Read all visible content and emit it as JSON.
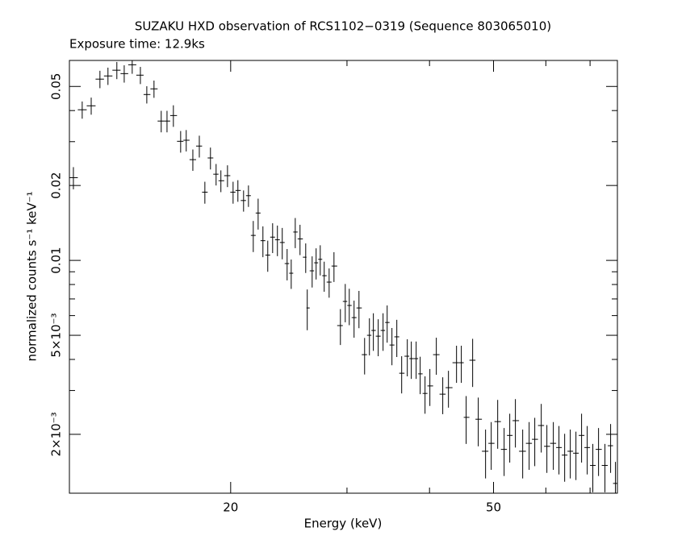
{
  "chart_data": {
    "type": "errorbar",
    "title": "SUZAKU HXD observation of RCS1102−0319 (Sequence 803065010)",
    "subtitle": "Exposure time: 12.9ks",
    "xlabel": "Energy (keV)",
    "ylabel": "normalized counts s⁻¹ keV⁻¹",
    "xscale": "log",
    "yscale": "log",
    "xlim": [
      11.4,
      77
    ],
    "ylim": [
      0.00116,
      0.0636
    ],
    "xticks": [
      20,
      50
    ],
    "xminorticks": [
      30,
      40,
      60,
      70
    ],
    "yticks": [
      {
        "value": 0.002,
        "label": "2×10⁻³"
      },
      {
        "value": 0.005,
        "label": "5×10⁻³"
      },
      0.01,
      0.02,
      0.05
    ],
    "yminorticks": [
      0.003,
      0.004,
      0.006,
      0.007,
      0.008,
      0.009,
      0.03,
      0.04
    ],
    "series": [
      {
        "color": "#000000",
        "x": [
          11.56,
          11.92,
          12.3,
          12.68,
          13.04,
          13.45,
          13.8,
          14.19,
          14.6,
          14.93,
          15.31,
          15.7,
          16.02,
          16.38,
          16.8,
          17.13,
          17.53,
          17.93,
          18.28,
          18.64,
          19.01,
          19.33,
          19.78,
          20.17,
          20.51,
          20.92,
          21.28,
          21.64,
          22.01,
          22.38,
          22.76,
          23.15,
          23.54,
          23.94,
          24.35,
          24.7,
          25.05,
          25.47,
          25.98,
          26.12,
          26.57,
          26.94,
          27.33,
          27.71,
          28.19,
          28.67,
          29.32,
          29.82,
          30.24,
          30.75,
          31.28,
          31.9,
          32.44,
          32.89,
          33.45,
          34.02,
          34.51,
          35.09,
          35.69,
          36.3,
          37.02,
          37.54,
          38.18,
          38.72,
          39.38,
          40.05,
          40.96,
          41.89,
          42.73,
          43.95,
          44.69,
          45.45,
          46.49,
          47.41,
          48.63,
          49.6,
          50.73,
          51.88,
          52.91,
          53.96,
          55.35,
          56.61,
          57.73,
          59.05,
          60.22,
          61.59,
          62.81,
          64.07,
          65.34,
          66.64,
          67.96,
          69.31,
          70.68,
          72.1,
          73.73,
          75.2,
          76.48
        ],
        "values": [
          0.0215,
          0.0403,
          0.0418,
          0.0535,
          0.0551,
          0.0581,
          0.0563,
          0.0611,
          0.0555,
          0.0464,
          0.0489,
          0.0363,
          0.0363,
          0.0382,
          0.0301,
          0.0304,
          0.0254,
          0.0288,
          0.0188,
          0.0258,
          0.0222,
          0.0209,
          0.0219,
          0.0188,
          0.0191,
          0.0174,
          0.0182,
          0.0126,
          0.0155,
          0.012,
          0.0105,
          0.0124,
          0.0121,
          0.0118,
          0.00971,
          0.00888,
          0.013,
          0.0122,
          0.0103,
          0.00644,
          0.00908,
          0.00978,
          0.0101,
          0.00868,
          0.00818,
          0.00949,
          0.00547,
          0.00684,
          0.00659,
          0.00589,
          0.00644,
          0.00418,
          0.005,
          0.00523,
          0.00496,
          0.00523,
          0.00563,
          0.00457,
          0.00493,
          0.00352,
          0.00412,
          0.00403,
          0.00403,
          0.0035,
          0.00292,
          0.00313,
          0.00418,
          0.0029,
          0.00308,
          0.00388,
          0.00388,
          0.00234,
          0.00397,
          0.0023,
          0.00171,
          0.00184,
          0.00225,
          0.00174,
          0.00198,
          0.00227,
          0.00171,
          0.00184,
          0.00191,
          0.00217,
          0.00179,
          0.00184,
          0.00177,
          0.00165,
          0.00171,
          0.00168,
          0.00198,
          0.00177,
          0.0015,
          0.00174,
          0.0015,
          0.0018,
          0.00127
        ],
        "yerr": [
          0.0022,
          0.0032,
          0.0033,
          0.0043,
          0.0044,
          0.0046,
          0.0045,
          0.0049,
          0.0044,
          0.0037,
          0.0039,
          0.0036,
          0.0036,
          0.0038,
          0.003,
          0.003,
          0.0025,
          0.0029,
          0.0019,
          0.0026,
          0.0022,
          0.0021,
          0.0022,
          0.0019,
          0.0019,
          0.0017,
          0.0018,
          0.0018,
          0.0022,
          0.0017,
          0.0015,
          0.0017,
          0.0017,
          0.0017,
          0.0014,
          0.0012,
          0.0018,
          0.0017,
          0.0014,
          0.0012,
          0.0013,
          0.0014,
          0.0014,
          0.0012,
          0.0011,
          0.0013,
          0.0009,
          0.0012,
          0.0011,
          0.001,
          0.0011,
          0.0007,
          0.00085,
          0.0009,
          0.00084,
          0.0009,
          0.00096,
          0.00078,
          0.00084,
          0.0006,
          0.0007,
          0.00069,
          0.00069,
          0.0006,
          0.0005,
          0.00053,
          0.00071,
          0.00049,
          0.00052,
          0.00066,
          0.00066,
          0.00051,
          0.00087,
          0.00051,
          0.00038,
          0.0004,
          0.0005,
          0.00038,
          0.00044,
          0.0005,
          0.00038,
          0.0004,
          0.00042,
          0.00048,
          0.00039,
          0.0004,
          0.00039,
          0.00036,
          0.00038,
          0.00037,
          0.00044,
          0.00039,
          0.00033,
          0.00038,
          0.00033,
          0.0004,
          0.00028
        ]
      }
    ]
  }
}
